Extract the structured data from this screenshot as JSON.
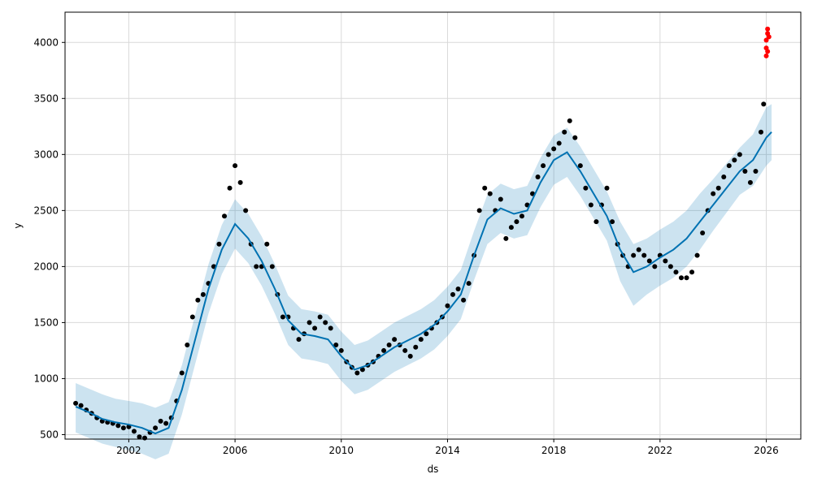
{
  "chart_data": {
    "type": "scatter",
    "title": "",
    "xlabel": "ds",
    "ylabel": "y",
    "xlim": [
      1999.6,
      2027.3
    ],
    "ylim": [
      460,
      4270
    ],
    "grid": true,
    "x_ticks": [
      2002,
      2006,
      2010,
      2014,
      2018,
      2022,
      2026
    ],
    "y_ticks": [
      500,
      1000,
      1500,
      2000,
      2500,
      3000,
      3500,
      4000
    ],
    "colors": {
      "observed": "#000000",
      "future_observed": "#ff0000",
      "forecast_line": "#0072B2",
      "uncertainty_band": "#0072B2",
      "grid": "#d9d9d9"
    },
    "series": [
      {
        "role": "forecast",
        "kind": "line",
        "x": [
          2000.0,
          2000.5,
          2001.0,
          2001.5,
          2002.0,
          2002.5,
          2003.0,
          2003.5,
          2004.0,
          2004.5,
          2005.0,
          2005.5,
          2006.0,
          2006.5,
          2007.0,
          2007.5,
          2008.0,
          2008.5,
          2009.0,
          2009.5,
          2010.0,
          2010.5,
          2011.0,
          2011.5,
          2012.0,
          2012.5,
          2013.0,
          2013.5,
          2014.0,
          2014.5,
          2015.0,
          2015.5,
          2016.0,
          2016.5,
          2017.0,
          2017.5,
          2018.0,
          2018.5,
          2019.0,
          2019.5,
          2020.0,
          2020.5,
          2021.0,
          2021.5,
          2022.0,
          2022.5,
          2023.0,
          2023.5,
          2024.0,
          2024.5,
          2025.0,
          2025.5,
          2026.0,
          2026.2
        ],
        "y": [
          750,
          700,
          640,
          610,
          590,
          560,
          510,
          560,
          900,
          1350,
          1800,
          2150,
          2380,
          2250,
          2050,
          1800,
          1520,
          1400,
          1380,
          1350,
          1200,
          1080,
          1120,
          1200,
          1280,
          1340,
          1400,
          1480,
          1600,
          1750,
          2100,
          2420,
          2520,
          2470,
          2500,
          2750,
          2950,
          3020,
          2850,
          2650,
          2450,
          2150,
          1950,
          2000,
          2080,
          2150,
          2250,
          2400,
          2550,
          2700,
          2850,
          2950,
          3150,
          3200
        ]
      },
      {
        "role": "uncertainty_upper",
        "kind": "band",
        "x": [
          2000.0,
          2000.5,
          2001.0,
          2001.5,
          2002.0,
          2002.5,
          2003.0,
          2003.5,
          2004.0,
          2004.5,
          2005.0,
          2005.5,
          2006.0,
          2006.5,
          2007.0,
          2007.5,
          2008.0,
          2008.5,
          2009.0,
          2009.5,
          2010.0,
          2010.5,
          2011.0,
          2011.5,
          2012.0,
          2012.5,
          2013.0,
          2013.5,
          2014.0,
          2014.5,
          2015.0,
          2015.5,
          2016.0,
          2016.5,
          2017.0,
          2017.5,
          2018.0,
          2018.5,
          2019.0,
          2019.5,
          2020.0,
          2020.5,
          2021.0,
          2021.5,
          2022.0,
          2022.5,
          2023.0,
          2023.5,
          2024.0,
          2024.5,
          2025.0,
          2025.5,
          2026.0,
          2026.2
        ],
        "y": [
          960,
          910,
          860,
          820,
          800,
          780,
          740,
          790,
          1120,
          1570,
          2020,
          2370,
          2600,
          2470,
          2270,
          2020,
          1740,
          1620,
          1600,
          1570,
          1420,
          1300,
          1340,
          1420,
          1500,
          1560,
          1620,
          1700,
          1820,
          1970,
          2320,
          2640,
          2740,
          2690,
          2720,
          2970,
          3170,
          3240,
          3070,
          2870,
          2670,
          2400,
          2200,
          2250,
          2330,
          2400,
          2500,
          2650,
          2780,
          2920,
          3060,
          3180,
          3420,
          3450
        ]
      },
      {
        "role": "uncertainty_lower",
        "kind": "band",
        "x": [
          2000.0,
          2000.5,
          2001.0,
          2001.5,
          2002.0,
          2002.5,
          2003.0,
          2003.5,
          2004.0,
          2004.5,
          2005.0,
          2005.5,
          2006.0,
          2006.5,
          2007.0,
          2007.5,
          2008.0,
          2008.5,
          2009.0,
          2009.5,
          2010.0,
          2010.5,
          2011.0,
          2011.5,
          2012.0,
          2012.5,
          2013.0,
          2013.5,
          2014.0,
          2014.5,
          2015.0,
          2015.5,
          2016.0,
          2016.5,
          2017.0,
          2017.5,
          2018.0,
          2018.5,
          2019.0,
          2019.5,
          2020.0,
          2020.5,
          2021.0,
          2021.5,
          2022.0,
          2022.5,
          2023.0,
          2023.5,
          2024.0,
          2024.5,
          2025.0,
          2025.5,
          2026.0,
          2026.2
        ],
        "y": [
          520,
          470,
          420,
          390,
          360,
          330,
          280,
          330,
          680,
          1130,
          1580,
          1930,
          2160,
          2030,
          1830,
          1580,
          1300,
          1180,
          1160,
          1130,
          980,
          860,
          900,
          980,
          1060,
          1120,
          1180,
          1260,
          1380,
          1530,
          1880,
          2200,
          2300,
          2250,
          2280,
          2530,
          2730,
          2800,
          2630,
          2430,
          2230,
          1870,
          1650,
          1750,
          1830,
          1900,
          2000,
          2150,
          2320,
          2480,
          2640,
          2720,
          2900,
          2950
        ]
      },
      {
        "role": "observed",
        "kind": "points",
        "x": [
          2000.0,
          2000.2,
          2000.4,
          2000.6,
          2000.8,
          2001.0,
          2001.2,
          2001.4,
          2001.6,
          2001.8,
          2002.0,
          2002.2,
          2002.4,
          2002.6,
          2002.8,
          2003.0,
          2003.2,
          2003.4,
          2003.6,
          2003.8,
          2004.0,
          2004.2,
          2004.4,
          2004.6,
          2004.8,
          2005.0,
          2005.2,
          2005.4,
          2005.6,
          2005.8,
          2006.0,
          2006.2,
          2006.4,
          2006.6,
          2006.8,
          2007.0,
          2007.2,
          2007.4,
          2007.6,
          2007.8,
          2008.0,
          2008.2,
          2008.4,
          2008.6,
          2008.8,
          2009.0,
          2009.2,
          2009.4,
          2009.6,
          2009.8,
          2010.0,
          2010.2,
          2010.4,
          2010.6,
          2010.8,
          2011.0,
          2011.2,
          2011.4,
          2011.6,
          2011.8,
          2012.0,
          2012.2,
          2012.4,
          2012.6,
          2012.8,
          2013.0,
          2013.2,
          2013.4,
          2013.6,
          2013.8,
          2014.0,
          2014.2,
          2014.4,
          2014.6,
          2014.8,
          2015.0,
          2015.2,
          2015.4,
          2015.6,
          2015.8,
          2016.0,
          2016.2,
          2016.4,
          2016.6,
          2016.8,
          2017.0,
          2017.2,
          2017.4,
          2017.6,
          2017.8,
          2018.0,
          2018.2,
          2018.4,
          2018.6,
          2018.8,
          2019.0,
          2019.2,
          2019.4,
          2019.6,
          2019.8,
          2020.0,
          2020.2,
          2020.4,
          2020.6,
          2020.8,
          2021.0,
          2021.2,
          2021.4,
          2021.6,
          2021.8,
          2022.0,
          2022.2,
          2022.4,
          2022.6,
          2022.8,
          2023.0,
          2023.2,
          2023.4,
          2023.6,
          2023.8,
          2024.0,
          2024.2,
          2024.4,
          2024.6,
          2024.8,
          2025.0,
          2025.2,
          2025.4,
          2025.6,
          2025.8,
          2025.9
        ],
        "y": [
          780,
          760,
          720,
          690,
          650,
          620,
          610,
          600,
          580,
          560,
          570,
          530,
          480,
          470,
          520,
          560,
          620,
          600,
          650,
          800,
          1050,
          1300,
          1550,
          1700,
          1750,
          1850,
          2000,
          2200,
          2450,
          2700,
          2900,
          2750,
          2500,
          2200,
          2000,
          2000,
          2200,
          2000,
          1750,
          1550,
          1550,
          1450,
          1350,
          1400,
          1500,
          1450,
          1550,
          1500,
          1450,
          1300,
          1250,
          1150,
          1100,
          1050,
          1080,
          1120,
          1150,
          1200,
          1250,
          1300,
          1350,
          1300,
          1250,
          1200,
          1280,
          1350,
          1400,
          1450,
          1500,
          1550,
          1650,
          1750,
          1800,
          1700,
          1850,
          2100,
          2500,
          2700,
          2650,
          2500,
          2600,
          2250,
          2350,
          2400,
          2450,
          2550,
          2650,
          2800,
          2900,
          3000,
          3050,
          3100,
          3200,
          3300,
          3150,
          2900,
          2700,
          2550,
          2400,
          2550,
          2700,
          2400,
          2200,
          2100,
          2000,
          2100,
          2150,
          2100,
          2050,
          2000,
          2100,
          2050,
          2000,
          1950,
          1900,
          1900,
          1950,
          2100,
          2300,
          2500,
          2650,
          2700,
          2800,
          2900,
          2950,
          3000,
          2850,
          2750,
          2850,
          3200,
          3450
        ]
      },
      {
        "role": "future_observed",
        "kind": "points",
        "x": [
          2026.0,
          2026.0,
          2026.0,
          2026.05,
          2026.05,
          2026.05,
          2026.1
        ],
        "y": [
          3880,
          3950,
          4020,
          4080,
          3920,
          4120,
          4050
        ]
      }
    ]
  }
}
